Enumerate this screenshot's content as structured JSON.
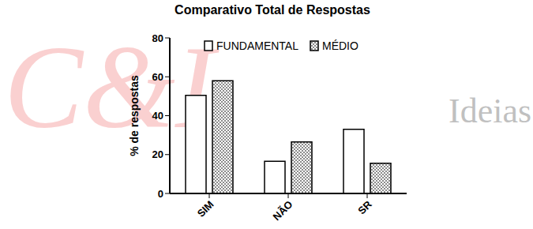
{
  "chart_data": {
    "type": "bar",
    "title": "Comparativo Total de Respostas",
    "y_label": "% de respostas",
    "categories": [
      "SIM",
      "NÃO",
      "SR"
    ],
    "series": [
      {
        "name": "FUNDAMENTAL",
        "color": "#ffffff",
        "values": [
          50.5,
          16.5,
          33
        ]
      },
      {
        "name": "MÉDIO",
        "color": "#8c8c8c",
        "values": [
          58,
          26.5,
          15.5
        ]
      }
    ],
    "ylim": [
      0,
      80
    ],
    "yticks": [
      0,
      20,
      40,
      60,
      80
    ],
    "grid": false,
    "legend": "top",
    "annotations": [
      "C&I",
      "Ideias"
    ]
  }
}
